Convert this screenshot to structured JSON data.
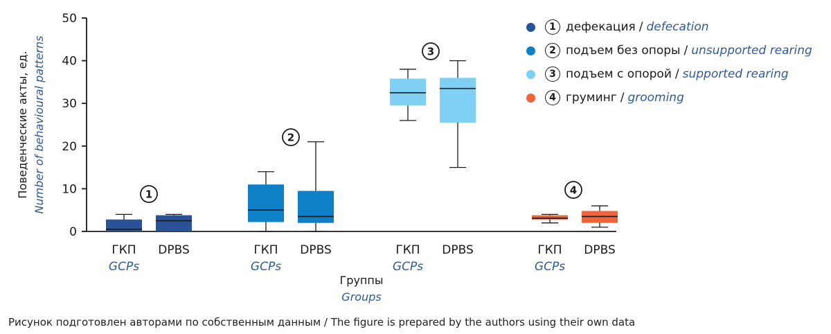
{
  "chart_data": {
    "type": "boxplot",
    "ylabel_ru": "Поведенческие акты, ед.",
    "ylabel_en": "Number of behavioural patterns",
    "xlabel_ru": "Группы",
    "xlabel_en": "Groups",
    "ylim": [
      0,
      50
    ],
    "yticks": [
      0,
      10,
      20,
      30,
      40,
      50
    ],
    "group_labels": [
      {
        "ru": "ГКП",
        "en": "GCPs"
      },
      {
        "ru": "DPBS",
        "en": ""
      }
    ],
    "series": [
      {
        "number": "1",
        "name_ru": "дефекация",
        "name_en": "defecation",
        "color": "#2a5298",
        "boxes": [
          {
            "group": "ГКП",
            "min": 0,
            "q1": 0,
            "median": 0.5,
            "q3": 2.8,
            "max": 4
          },
          {
            "group": "DPBS",
            "min": 0,
            "q1": 0,
            "median": 2.5,
            "q3": 3.8,
            "max": 4
          }
        ]
      },
      {
        "number": "2",
        "name_ru": "подъем без опоры",
        "name_en": "unsupported rearing",
        "color": "#0d80c8",
        "boxes": [
          {
            "group": "ГКП",
            "min": 0,
            "q1": 2.2,
            "median": 5,
            "q3": 11,
            "max": 14
          },
          {
            "group": "DPBS",
            "min": 0,
            "q1": 2,
            "median": 3.5,
            "q3": 9.5,
            "max": 21
          }
        ]
      },
      {
        "number": "3",
        "name_ru": "подъем с опорой",
        "name_en": "supported rearing",
        "color": "#7fd0f3",
        "boxes": [
          {
            "group": "ГКП",
            "min": 26,
            "q1": 29.5,
            "median": 32.5,
            "q3": 35.8,
            "max": 38
          },
          {
            "group": "DPBS",
            "min": 15,
            "q1": 25.5,
            "median": 33.5,
            "q3": 36,
            "max": 40
          }
        ]
      },
      {
        "number": "4",
        "name_ru": "груминг",
        "name_en": "grooming",
        "color": "#f0643c",
        "boxes": [
          {
            "group": "ГКП",
            "min": 2,
            "q1": 2.8,
            "median": 3.1,
            "q3": 3.8,
            "max": 4
          },
          {
            "group": "DPBS",
            "min": 1,
            "q1": 2,
            "median": 3.5,
            "q3": 4.8,
            "max": 6
          }
        ]
      }
    ]
  },
  "legend_separator": "/",
  "footnote": "Рисунок подготовлен авторами по собственным данным / The figure is prepared by the authors using their own data"
}
